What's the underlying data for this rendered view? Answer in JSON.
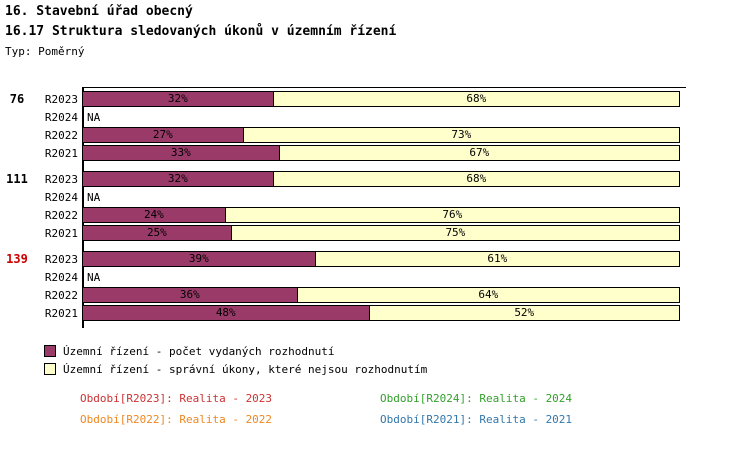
{
  "header": {
    "title1": "16. Stavební úřad obecný",
    "title2": "16.17 Struktura sledovaných úkonů v územním řízení",
    "type_label": "Typ: Poměrný"
  },
  "chart_data": {
    "type": "bar",
    "orientation": "horizontal-stacked",
    "value_suffix": "%",
    "na_label": "NA",
    "axis_color": "#000000",
    "colors": {
      "decisions": "#9A3A68",
      "other_acts": "#FFFFCC"
    },
    "groups": [
      {
        "total": "76",
        "total_color": "#000000",
        "rows": [
          {
            "label": "R2023",
            "values": [
              32,
              68
            ]
          },
          {
            "label": "R2024",
            "values": null
          },
          {
            "label": "R2022",
            "values": [
              27,
              73
            ]
          },
          {
            "label": "R2021",
            "values": [
              33,
              67
            ]
          }
        ]
      },
      {
        "total": "111",
        "total_color": "#000000",
        "rows": [
          {
            "label": "R2023",
            "values": [
              32,
              68
            ]
          },
          {
            "label": "R2024",
            "values": null
          },
          {
            "label": "R2022",
            "values": [
              24,
              76
            ]
          },
          {
            "label": "R2021",
            "values": [
              25,
              75
            ]
          }
        ]
      },
      {
        "total": "139",
        "total_color": "#CC0000",
        "rows": [
          {
            "label": "R2023",
            "values": [
              39,
              61
            ]
          },
          {
            "label": "R2024",
            "values": null
          },
          {
            "label": "R2022",
            "values": [
              36,
              64
            ]
          },
          {
            "label": "R2021",
            "values": [
              48,
              52
            ]
          }
        ]
      }
    ],
    "legend": [
      {
        "color": "#9A3A68",
        "label": "Územní řízení - počet vydaných rozhodnutí"
      },
      {
        "color": "#FFFFCC",
        "label": "Územní řízení - správní úkony, které nejsou rozhodnutím"
      }
    ]
  },
  "period_legend": [
    {
      "label": "Období[R2023]: Realita - 2023",
      "color": "#CC3333"
    },
    {
      "label": "Období[R2024]: Realita - 2024",
      "color": "#33A02C"
    },
    {
      "label": "Období[R2022]: Realita - 2022",
      "color": "#EE8822"
    },
    {
      "label": "Období[R2021]: Realita - 2021",
      "color": "#3377AA"
    }
  ]
}
